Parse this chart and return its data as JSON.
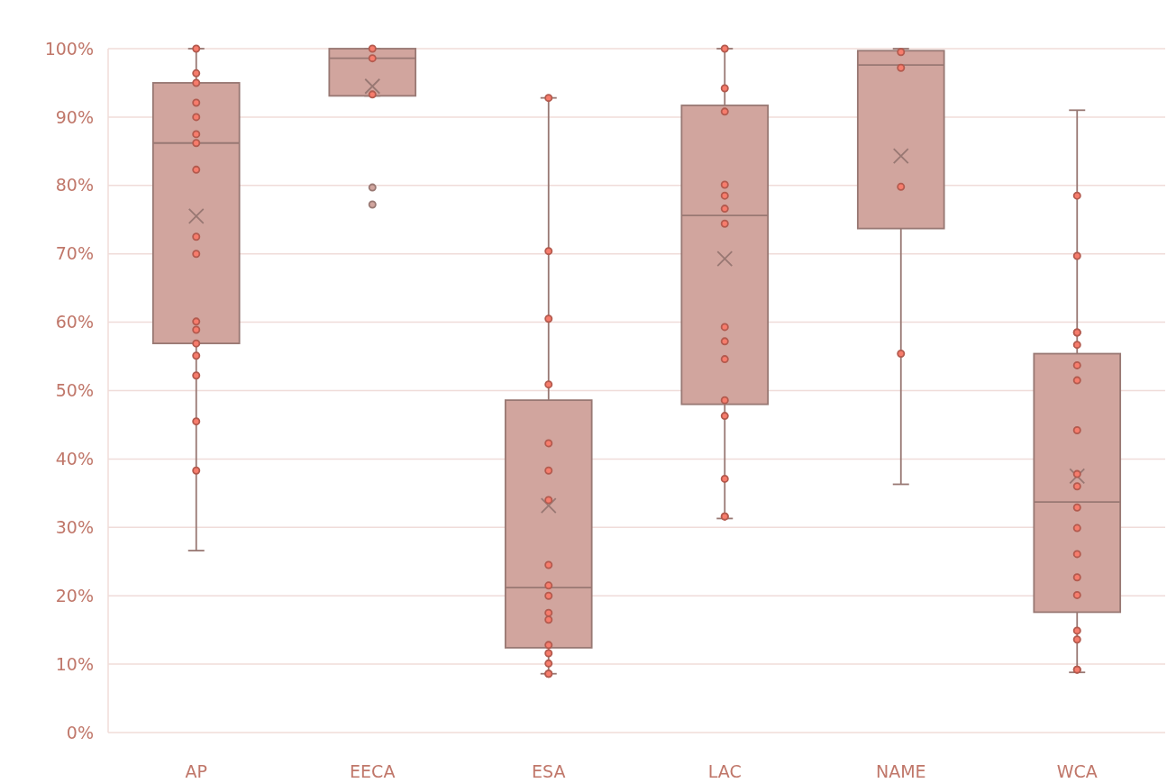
{
  "chart_data": {
    "type": "box",
    "categories": [
      "AP",
      "EECA",
      "ESA",
      "LAC",
      "NAME",
      "WCA"
    ],
    "ylim": [
      0,
      100
    ],
    "yticks": [
      {
        "value": 0,
        "label": "0%"
      },
      {
        "value": 10,
        "label": "10%"
      },
      {
        "value": 20,
        "label": "20%"
      },
      {
        "value": 30,
        "label": "30%"
      },
      {
        "value": 40,
        "label": "40%"
      },
      {
        "value": 50,
        "label": "50%"
      },
      {
        "value": 60,
        "label": "60%"
      },
      {
        "value": 70,
        "label": "70%"
      },
      {
        "value": 80,
        "label": "80%"
      },
      {
        "value": 90,
        "label": "90%"
      },
      {
        "value": 100,
        "label": "100%"
      }
    ],
    "grid": "y",
    "marker": "circle",
    "series": [
      {
        "color": "#d1a59e",
        "boxes": [
          {
            "low": 26.6,
            "q1": 56.9,
            "median": 86.2,
            "q3": 95.0,
            "high": 100,
            "mean": 75.5
          },
          {
            "low": 93.1,
            "q1": 93.1,
            "median": 98.6,
            "q3": 100,
            "high": 100,
            "mean": 94.5,
            "outliers": [
              79.7,
              77.2
            ]
          },
          {
            "low": 8.6,
            "q1": 12.4,
            "median": 21.2,
            "q3": 48.6,
            "high": 92.8,
            "mean": 33.2
          },
          {
            "low": 31.3,
            "q1": 48.0,
            "median": 75.6,
            "q3": 91.7,
            "high": 100,
            "mean": 69.3
          },
          {
            "low": 36.3,
            "q1": 73.7,
            "median": 97.6,
            "q3": 99.7,
            "high": 100,
            "mean": 84.3
          },
          {
            "low": 8.8,
            "q1": 17.6,
            "median": 33.7,
            "q3": 55.4,
            "high": 91.0,
            "mean": 37.5
          }
        ]
      },
      {
        "type": "scatter",
        "color": "#b35a4e",
        "x": [
          "AP",
          "AP",
          "AP",
          "AP",
          "AP",
          "AP",
          "AP",
          "AP",
          "AP",
          "AP",
          "AP",
          "AP",
          "AP",
          "AP",
          "AP",
          "AP",
          "AP",
          "EECA",
          "EECA",
          "EECA",
          "ESA",
          "ESA",
          "ESA",
          "ESA",
          "ESA",
          "ESA",
          "ESA",
          "ESA",
          "ESA",
          "ESA",
          "ESA",
          "ESA",
          "ESA",
          "ESA",
          "ESA",
          "ESA",
          "ESA",
          "LAC",
          "LAC",
          "LAC",
          "LAC",
          "LAC",
          "LAC",
          "LAC",
          "LAC",
          "LAC",
          "LAC",
          "LAC",
          "LAC",
          "LAC",
          "LAC",
          "LAC",
          "NAME",
          "NAME",
          "NAME",
          "NAME",
          "WCA",
          "WCA",
          "WCA",
          "WCA",
          "WCA",
          "WCA",
          "WCA",
          "WCA",
          "WCA",
          "WCA",
          "WCA",
          "WCA",
          "WCA",
          "WCA",
          "WCA",
          "WCA",
          "WCA",
          "WCA",
          "WCA"
        ],
        "values": [
          100,
          96.4,
          95.0,
          92.1,
          90.0,
          87.5,
          86.2,
          82.3,
          72.5,
          70.0,
          60.1,
          58.9,
          56.9,
          55.1,
          52.2,
          45.5,
          38.3,
          100,
          98.6,
          93.3,
          92.8,
          70.4,
          60.5,
          50.9,
          42.3,
          38.3,
          34.0,
          24.5,
          21.5,
          20.0,
          17.5,
          16.5,
          12.8,
          11.6,
          10.1,
          8.6,
          8.6,
          100,
          94.2,
          90.8,
          80.1,
          78.5,
          76.6,
          74.4,
          59.3,
          57.2,
          54.6,
          48.6,
          46.3,
          37.1,
          31.6,
          31.6,
          99.5,
          97.2,
          79.8,
          55.4,
          78.5,
          69.7,
          58.5,
          56.7,
          53.7,
          51.5,
          44.2,
          37.8,
          36.0,
          32.9,
          29.9,
          26.1,
          22.7,
          20.1,
          14.9,
          13.6,
          9.2,
          9.2,
          58.5
        ]
      }
    ]
  }
}
